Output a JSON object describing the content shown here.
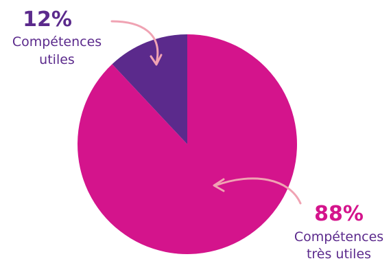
{
  "chart_data": {
    "type": "pie",
    "title": "",
    "slices": [
      {
        "value": 12,
        "percent_label": "12%",
        "label_lines": [
          "Compétences",
          "utiles"
        ],
        "color": "#5b2a8c"
      },
      {
        "value": 88,
        "percent_label": "88%",
        "label_lines": [
          "Compétences",
          "très utiles"
        ],
        "color": "#d4148c"
      }
    ],
    "colors": {
      "pct_small": "#5b2a8c",
      "pct_large": "#d4148c",
      "category_text": "#5b2a8c",
      "arrow": "#f0a3b3"
    }
  }
}
